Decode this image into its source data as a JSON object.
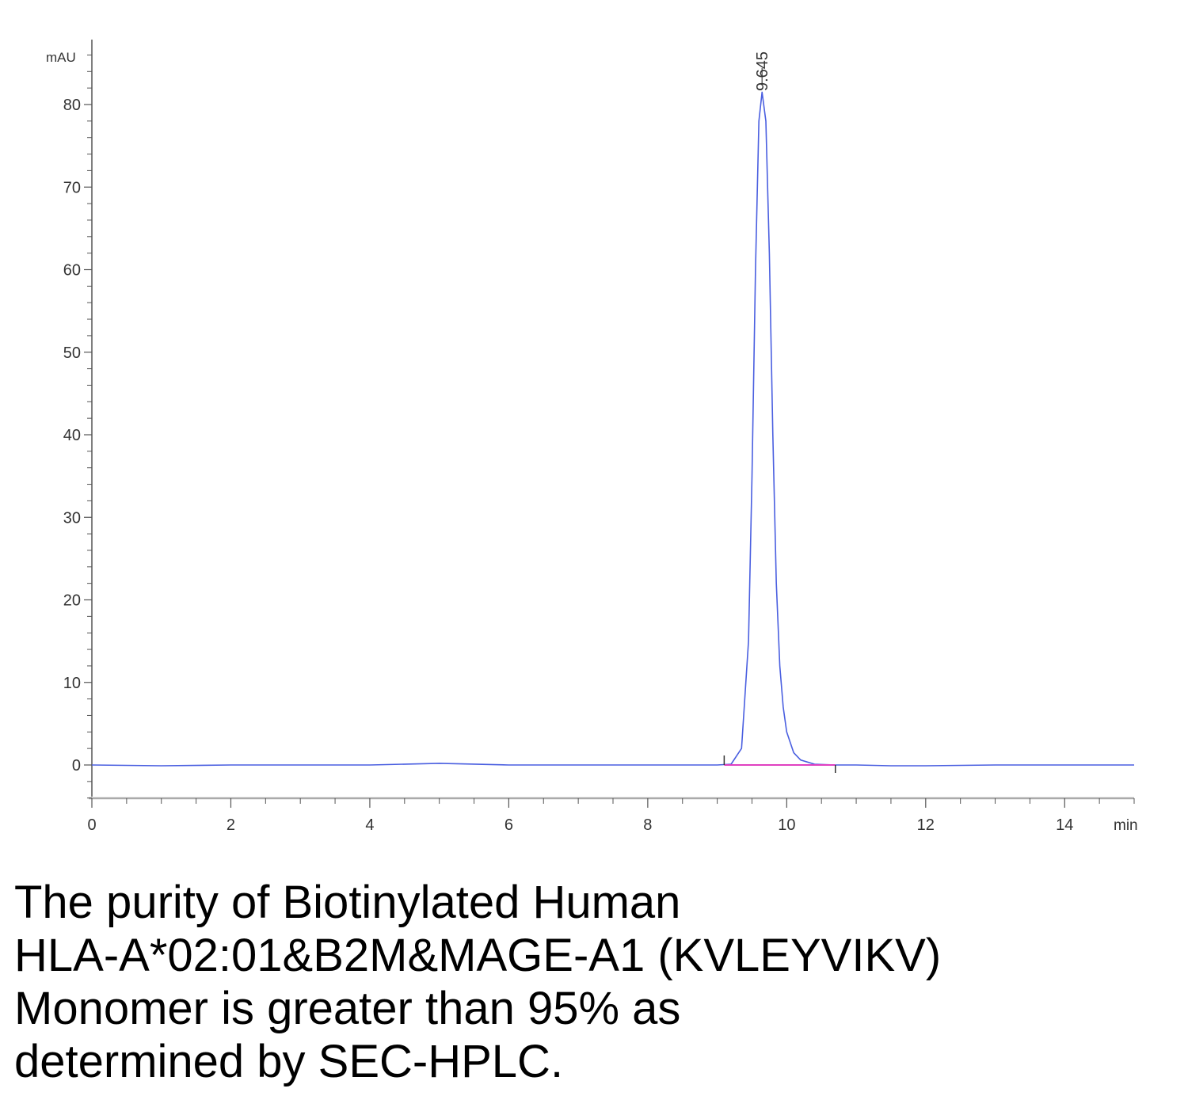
{
  "chart_data": {
    "type": "line",
    "title": "",
    "xlabel": "min",
    "ylabel": "mAU",
    "xlim": [
      0,
      15
    ],
    "ylim": [
      -4,
      87
    ],
    "x_ticks": [
      0,
      2,
      4,
      6,
      8,
      10,
      12,
      14
    ],
    "y_ticks": [
      0,
      10,
      20,
      30,
      40,
      50,
      60,
      70,
      80
    ],
    "series": [
      {
        "color": "#4a5fe0",
        "points": [
          [
            0,
            0
          ],
          [
            1,
            -0.1
          ],
          [
            2,
            0
          ],
          [
            3,
            0
          ],
          [
            4,
            0
          ],
          [
            5,
            0.2
          ],
          [
            6,
            0
          ],
          [
            7,
            0
          ],
          [
            8,
            0
          ],
          [
            9,
            0
          ],
          [
            9.2,
            0.1
          ],
          [
            9.35,
            2
          ],
          [
            9.45,
            15
          ],
          [
            9.5,
            35
          ],
          [
            9.55,
            60
          ],
          [
            9.6,
            78
          ],
          [
            9.645,
            81.5
          ],
          [
            9.7,
            78
          ],
          [
            9.75,
            62
          ],
          [
            9.8,
            40
          ],
          [
            9.85,
            22
          ],
          [
            9.9,
            12
          ],
          [
            9.95,
            7
          ],
          [
            10.0,
            4
          ],
          [
            10.1,
            1.5
          ],
          [
            10.2,
            0.6
          ],
          [
            10.4,
            0.1
          ],
          [
            10.7,
            0
          ],
          [
            11,
            0
          ],
          [
            11.5,
            -0.1
          ],
          [
            12,
            -0.1
          ],
          [
            13,
            0
          ],
          [
            14,
            0
          ],
          [
            15,
            0
          ]
        ]
      }
    ],
    "peak": {
      "retention_time": 9.645,
      "label": "9.645",
      "height": 81.5
    },
    "baseline": {
      "x_start": 9.1,
      "x_end": 10.7,
      "y": 0,
      "color": "#e040c0"
    },
    "legend": "none",
    "grid": false
  },
  "colors": {
    "trace": "#4a5fe0",
    "baseline": "#e040c0",
    "axis": "#555555",
    "bottom_axis": "#aaaaaa"
  },
  "caption": {
    "lines": [
      "The purity of Biotinylated Human",
      "HLA-A*02:01&B2M&MAGE-A1 (KVLEYVIKV)",
      "Monomer is greater than 95% as",
      "determined by SEC-HPLC."
    ]
  }
}
